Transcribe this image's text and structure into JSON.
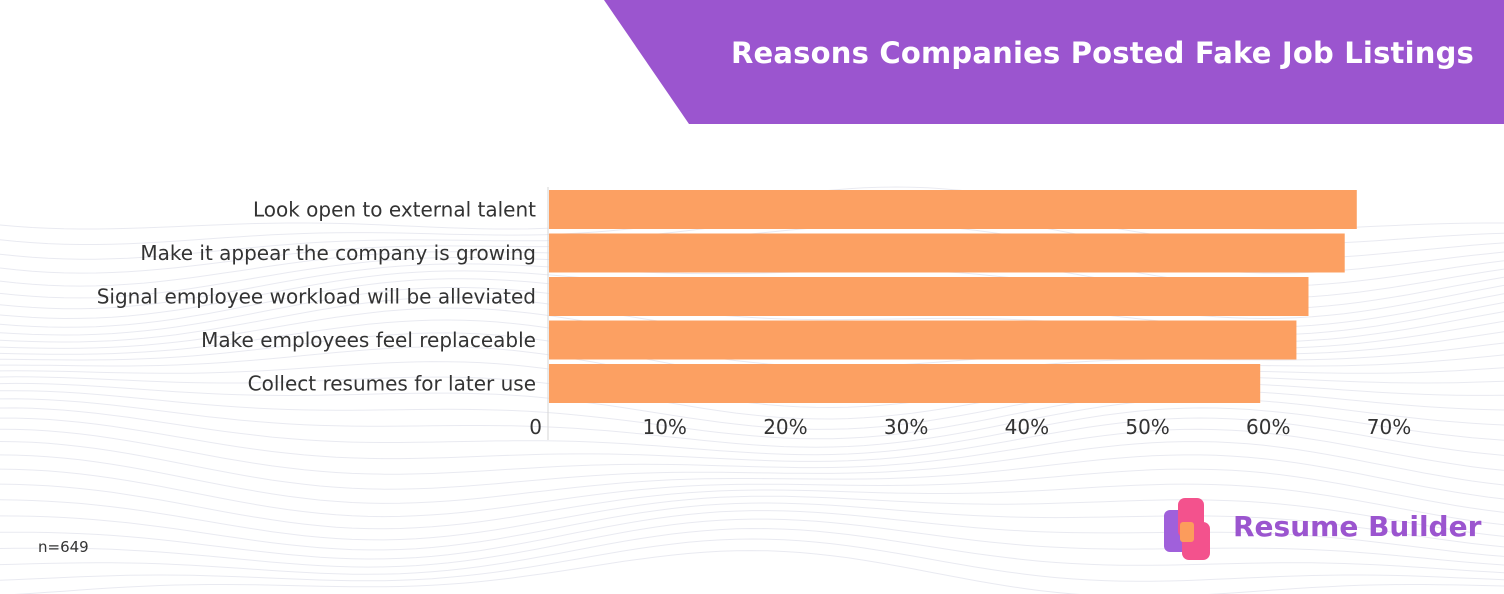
{
  "header": {
    "title": "Reasons Companies Posted Fake Job Listings"
  },
  "footer": {
    "sample_size": "n=649",
    "brand_name": "Resume Builder"
  },
  "colors": {
    "banner": "#9b55cf",
    "bar": "#fca062",
    "brand_pink": "#f3528d",
    "brand_purple": "#a060db",
    "brand_orange": "#fc9c5c"
  },
  "icons": {
    "brand_logo": "resume-builder-logo-icon"
  },
  "chart_data": {
    "type": "bar",
    "orientation": "horizontal",
    "categories": [
      "Look open to external talent",
      "Make it appear the company is growing",
      "Signal employee workload will be alleviated",
      "Make employees feel replaceable",
      "Collect resumes for later use"
    ],
    "values": [
      67,
      66,
      63,
      62,
      59
    ],
    "unit": "%",
    "xlim": [
      0,
      70
    ],
    "x_ticks": [
      0,
      10,
      20,
      30,
      40,
      50,
      60,
      70
    ],
    "x_tick_labels": [
      "0",
      "10%",
      "20%",
      "30%",
      "40%",
      "50%",
      "60%",
      "70%"
    ],
    "title": "Reasons Companies Posted Fake Job Listings",
    "xlabel": "",
    "ylabel": "",
    "grid": false,
    "legend": "none"
  }
}
